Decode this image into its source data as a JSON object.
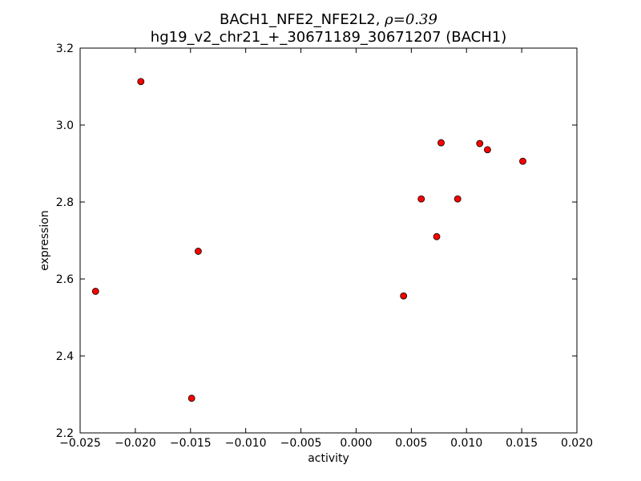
{
  "chart_data": {
    "type": "scatter",
    "title_line1_prefix": "BACH1_NFE2_NFE2L2, ",
    "title_rho_symbol": "ρ",
    "title_rho_value": "=0.39",
    "title_line2": "hg19_v2_chr21_+_30671189_30671207 (BACH1)",
    "xlabel": "activity",
    "ylabel": "expression",
    "xlim": [
      -0.025,
      0.02
    ],
    "ylim": [
      2.2,
      3.2
    ],
    "x_ticks": [
      -0.025,
      -0.02,
      -0.015,
      -0.01,
      -0.005,
      0.0,
      0.005,
      0.01,
      0.015,
      0.02
    ],
    "x_tick_labels": [
      "−0.025",
      "−0.020",
      "−0.015",
      "−0.010",
      "−0.005",
      "0.000",
      "0.005",
      "0.010",
      "0.015",
      "0.020"
    ],
    "y_ticks": [
      2.2,
      2.4,
      2.6,
      2.8,
      3.0,
      3.2
    ],
    "y_tick_labels": [
      "2.2",
      "2.4",
      "2.6",
      "2.8",
      "3.0",
      "3.2"
    ],
    "grid": false,
    "marker_color": "#ff0000",
    "marker_edge_color": "#000000",
    "points": [
      {
        "x": -0.0236,
        "y": 2.568
      },
      {
        "x": -0.0195,
        "y": 3.113
      },
      {
        "x": -0.0149,
        "y": 2.29
      },
      {
        "x": -0.0143,
        "y": 2.672
      },
      {
        "x": 0.0043,
        "y": 2.556
      },
      {
        "x": 0.0059,
        "y": 2.808
      },
      {
        "x": 0.0073,
        "y": 2.71
      },
      {
        "x": 0.0077,
        "y": 2.954
      },
      {
        "x": 0.0092,
        "y": 2.808
      },
      {
        "x": 0.0112,
        "y": 2.952
      },
      {
        "x": 0.0119,
        "y": 2.936
      },
      {
        "x": 0.0151,
        "y": 2.906
      }
    ]
  }
}
